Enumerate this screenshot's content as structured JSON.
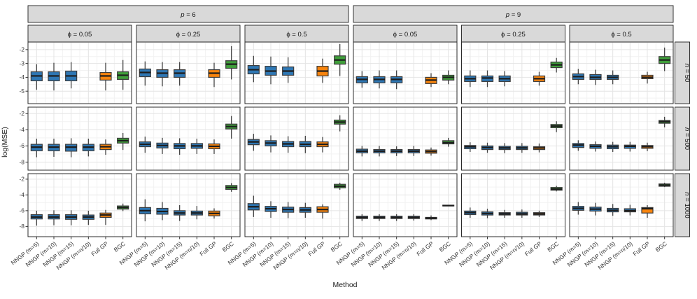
{
  "chart_data": {
    "type": "boxplot",
    "xlabel": "Method",
    "ylabel": "log(MSE)",
    "legend": "none",
    "grid": "on",
    "methods": [
      "NNGP (m=5)",
      "NNGP (m=10)",
      "NNGP (m=15)",
      "NNGP (m=n/10)",
      "Full GP",
      "BGC"
    ],
    "method_colors": [
      "#2e77b4",
      "#2e77b4",
      "#2e77b4",
      "#2e77b4",
      "#f8840d",
      "#3f9e3a"
    ],
    "colors": {
      "nngp_blue": "#2e77b4",
      "full_gp_orange": "#f8840d",
      "bgc_green": "#3f9e3a",
      "strip_fill": "#d9d9d9",
      "panel_border": "#2b2b2b",
      "grid_major": "#e4e4e4",
      "grid_minor": "#f2f2f2",
      "median": "#1d1d1d",
      "box_stroke": "#3d3d3d",
      "whisker": "#454545",
      "tick_text": "#333333"
    },
    "col_groups": [
      {
        "var": "p",
        "value": "6",
        "italic": true,
        "label": "p = 6"
      },
      {
        "var": "p",
        "value": "9",
        "italic": true,
        "label": "p = 9"
      }
    ],
    "sub_cols": [
      {
        "var": "ϕ",
        "value": "0.05",
        "italic": false,
        "label": "ϕ = 0.05"
      },
      {
        "var": "ϕ",
        "value": "0.25",
        "italic": false,
        "label": "ϕ = 0.25"
      },
      {
        "var": "ϕ",
        "value": "0.5",
        "italic": false,
        "label": "ϕ = 0.5"
      }
    ],
    "rows": [
      {
        "var": "n",
        "value": "50",
        "italic": true,
        "label": "n = 50",
        "ylim": [
          -5.9,
          -1.45
        ],
        "yticks": [
          -2,
          -3,
          -4,
          -5
        ],
        "yminor": [
          -1.5,
          -2.5,
          -3.5,
          -4.5,
          -5.5
        ]
      },
      {
        "var": "n",
        "value": "500",
        "italic": true,
        "label": "n = 500",
        "ylim": [
          -9.0,
          -1.2
        ],
        "yticks": [
          -2,
          -4,
          -6,
          -8
        ],
        "yminor": [
          -3,
          -5,
          -7
        ]
      },
      {
        "var": "n",
        "value": "1000",
        "italic": true,
        "label": "n = 1000",
        "ylim": [
          -9.3,
          -1.3
        ],
        "yticks": [
          -2,
          -4,
          -6,
          -8
        ],
        "yminor": [
          -3,
          -5,
          -7
        ]
      }
    ],
    "box_stat_order": [
      "whisker_low",
      "q1",
      "median",
      "q3",
      "whisker_high"
    ],
    "panels": [
      {
        "n": "50",
        "p": "6",
        "phi": "0.05",
        "boxes": [
          [
            -4.9,
            -4.25,
            -3.9,
            -3.6,
            -3.05
          ],
          [
            -4.95,
            -4.25,
            -3.9,
            -3.6,
            -2.95
          ],
          [
            -4.8,
            -4.25,
            -3.9,
            -3.55,
            -2.9
          ],
          null,
          [
            -4.95,
            -4.2,
            -3.9,
            -3.65,
            -2.95
          ],
          [
            -4.9,
            -4.15,
            -3.85,
            -3.6,
            -2.75
          ]
        ]
      },
      {
        "n": "50",
        "p": "6",
        "phi": "0.25",
        "boxes": [
          [
            -4.6,
            -3.95,
            -3.65,
            -3.4,
            -2.85
          ],
          [
            -4.65,
            -4.0,
            -3.7,
            -3.45,
            -2.9
          ],
          [
            -4.6,
            -4.0,
            -3.7,
            -3.45,
            -2.9
          ],
          null,
          [
            -4.7,
            -4.0,
            -3.7,
            -3.45,
            -2.95
          ],
          [
            -4.15,
            -3.35,
            -3.05,
            -2.8,
            -1.75
          ]
        ]
      },
      {
        "n": "50",
        "p": "6",
        "phi": "0.5",
        "boxes": [
          [
            -4.35,
            -3.75,
            -3.45,
            -3.15,
            -2.45
          ],
          [
            -4.5,
            -3.85,
            -3.55,
            -3.2,
            -2.5
          ],
          [
            -4.4,
            -3.85,
            -3.55,
            -3.25,
            -2.55
          ],
          null,
          [
            -4.4,
            -3.9,
            -3.55,
            -3.2,
            -2.65
          ],
          [
            -3.9,
            -3.05,
            -2.75,
            -2.45,
            -1.6
          ]
        ]
      },
      {
        "n": "50",
        "p": "9",
        "phi": "0.05",
        "boxes": [
          [
            -4.75,
            -4.4,
            -4.15,
            -3.95,
            -3.55
          ],
          [
            -4.8,
            -4.4,
            -4.15,
            -3.95,
            -3.5
          ],
          [
            -4.85,
            -4.4,
            -4.15,
            -3.95,
            -3.5
          ],
          null,
          [
            -4.7,
            -4.45,
            -4.2,
            -4.0,
            -3.7
          ],
          [
            -4.5,
            -4.2,
            -4.0,
            -3.85,
            -3.5
          ]
        ]
      },
      {
        "n": "50",
        "p": "9",
        "phi": "0.25",
        "boxes": [
          [
            -4.7,
            -4.3,
            -4.1,
            -3.9,
            -3.5
          ],
          [
            -4.7,
            -4.3,
            -4.05,
            -3.9,
            -3.5
          ],
          [
            -4.65,
            -4.3,
            -4.1,
            -3.9,
            -3.55
          ],
          null,
          [
            -4.6,
            -4.3,
            -4.1,
            -3.9,
            -3.6
          ],
          [
            -3.65,
            -3.3,
            -3.1,
            -2.9,
            -2.6
          ]
        ]
      },
      {
        "n": "50",
        "p": "9",
        "phi": "0.5",
        "boxes": [
          [
            -4.5,
            -4.15,
            -3.95,
            -3.75,
            -3.4
          ],
          [
            -4.55,
            -4.15,
            -4.0,
            -3.8,
            -3.45
          ],
          [
            -4.5,
            -4.15,
            -4.0,
            -3.85,
            -3.5
          ],
          null,
          [
            -4.45,
            -4.1,
            -4.0,
            -3.85,
            -3.6
          ],
          [
            -3.55,
            -3.0,
            -2.75,
            -2.5,
            -1.85
          ]
        ]
      },
      {
        "n": "500",
        "p": "6",
        "phi": "0.05",
        "boxes": [
          [
            -7.4,
            -6.6,
            -6.15,
            -5.8,
            -5.1
          ],
          [
            -7.35,
            -6.6,
            -6.15,
            -5.8,
            -5.1
          ],
          [
            -7.4,
            -6.65,
            -6.15,
            -5.8,
            -5.05
          ],
          [
            -7.3,
            -6.6,
            -6.15,
            -5.8,
            -5.1
          ],
          [
            -7.1,
            -6.45,
            -6.1,
            -5.8,
            -5.2
          ],
          [
            -6.5,
            -5.65,
            -5.35,
            -5.05,
            -4.4
          ]
        ]
      },
      {
        "n": "500",
        "p": "6",
        "phi": "0.25",
        "boxes": [
          [
            -6.85,
            -6.1,
            -5.8,
            -5.5,
            -4.85
          ],
          [
            -7.0,
            -6.25,
            -5.95,
            -5.65,
            -5.0
          ],
          [
            -7.1,
            -6.35,
            -6.0,
            -5.7,
            -5.05
          ],
          [
            -7.0,
            -6.3,
            -6.0,
            -5.7,
            -5.1
          ],
          [
            -7.0,
            -6.35,
            -6.05,
            -5.75,
            -5.2
          ],
          [
            -5.1,
            -3.9,
            -3.6,
            -3.3,
            -2.3
          ]
        ]
      },
      {
        "n": "500",
        "p": "6",
        "phi": "0.5",
        "boxes": [
          [
            -6.6,
            -5.85,
            -5.5,
            -5.2,
            -4.5
          ],
          [
            -6.8,
            -6.0,
            -5.65,
            -5.35,
            -4.7
          ],
          [
            -6.85,
            -6.1,
            -5.75,
            -5.45,
            -4.8
          ],
          [
            -6.9,
            -6.1,
            -5.8,
            -5.45,
            -4.75
          ],
          [
            -6.8,
            -6.1,
            -5.8,
            -5.5,
            -4.9
          ],
          [
            -4.2,
            -3.3,
            -3.05,
            -2.8,
            -2.2
          ]
        ]
      },
      {
        "n": "500",
        "p": "9",
        "phi": "0.05",
        "boxes": [
          [
            -7.3,
            -6.85,
            -6.65,
            -6.4,
            -6.0
          ],
          [
            -7.3,
            -6.85,
            -6.65,
            -6.45,
            -6.0
          ],
          [
            -7.25,
            -6.85,
            -6.65,
            -6.45,
            -6.05
          ],
          [
            -7.25,
            -6.85,
            -6.65,
            -6.45,
            -6.0
          ],
          [
            -7.2,
            -6.9,
            -6.7,
            -6.5,
            -6.2
          ],
          [
            -6.1,
            -5.75,
            -5.6,
            -5.35,
            -5.0
          ]
        ]
      },
      {
        "n": "500",
        "p": "9",
        "phi": "0.25",
        "boxes": [
          [
            -6.75,
            -6.35,
            -6.1,
            -5.95,
            -5.55
          ],
          [
            -6.85,
            -6.45,
            -6.2,
            -6.0,
            -5.6
          ],
          [
            -6.9,
            -6.45,
            -6.25,
            -6.05,
            -5.65
          ],
          [
            -6.85,
            -6.45,
            -6.25,
            -6.05,
            -5.65
          ],
          [
            -6.8,
            -6.45,
            -6.25,
            -6.1,
            -5.7
          ],
          [
            -4.3,
            -3.75,
            -3.55,
            -3.35,
            -2.95
          ]
        ]
      },
      {
        "n": "500",
        "p": "9",
        "phi": "0.5",
        "boxes": [
          [
            -6.6,
            -6.2,
            -5.9,
            -5.7,
            -5.3
          ],
          [
            -6.7,
            -6.3,
            -6.05,
            -5.85,
            -5.45
          ],
          [
            -6.75,
            -6.35,
            -6.1,
            -5.9,
            -5.5
          ],
          [
            -6.7,
            -6.3,
            -6.05,
            -5.9,
            -5.5
          ],
          [
            -6.65,
            -6.3,
            -6.1,
            -5.95,
            -5.6
          ],
          [
            -3.7,
            -3.2,
            -3.0,
            -2.85,
            -2.4
          ]
        ]
      },
      {
        "n": "1000",
        "p": "6",
        "phi": "0.05",
        "boxes": [
          [
            -7.9,
            -7.05,
            -6.8,
            -6.5,
            -6.0
          ],
          [
            -7.85,
            -7.05,
            -6.8,
            -6.5,
            -5.95
          ],
          [
            -7.85,
            -7.1,
            -6.8,
            -6.5,
            -5.95
          ],
          [
            -7.8,
            -7.1,
            -6.8,
            -6.55,
            -6.0
          ],
          [
            -7.8,
            -6.85,
            -6.55,
            -6.3,
            -5.9
          ],
          [
            -6.05,
            -5.8,
            -5.6,
            -5.4,
            -5.1
          ]
        ]
      },
      {
        "n": "1000",
        "p": "6",
        "phi": "0.25",
        "boxes": [
          [
            -7.35,
            -6.4,
            -6.0,
            -5.6,
            -4.55
          ],
          [
            -7.2,
            -6.45,
            -6.1,
            -5.7,
            -4.9
          ],
          [
            -7.3,
            -6.55,
            -6.3,
            -6.0,
            -5.3
          ],
          [
            -7.1,
            -6.55,
            -6.3,
            -6.05,
            -5.4
          ],
          [
            -7.0,
            -6.65,
            -6.35,
            -6.05,
            -5.7
          ],
          [
            -3.6,
            -3.3,
            -3.05,
            -2.8,
            -2.5
          ]
        ]
      },
      {
        "n": "1000",
        "p": "6",
        "phi": "0.5",
        "boxes": [
          [
            -6.8,
            -5.9,
            -5.5,
            -5.1,
            -4.1
          ],
          [
            -6.9,
            -6.1,
            -5.75,
            -5.45,
            -4.8
          ],
          [
            -6.95,
            -6.2,
            -5.85,
            -5.55,
            -4.9
          ],
          [
            -6.9,
            -6.2,
            -5.9,
            -5.6,
            -5.0
          ],
          [
            -7.0,
            -6.2,
            -5.85,
            -5.5,
            -5.2
          ],
          [
            -3.35,
            -3.1,
            -2.9,
            -2.65,
            -2.45
          ]
        ]
      },
      {
        "n": "1000",
        "p": "9",
        "phi": "0.05",
        "boxes": [
          [
            -7.3,
            -7.0,
            -6.85,
            -6.7,
            -6.45
          ],
          [
            -7.3,
            -7.0,
            -6.85,
            -6.7,
            -6.45
          ],
          [
            -7.3,
            -7.0,
            -6.85,
            -6.7,
            -6.45
          ],
          [
            -7.25,
            -7.0,
            -6.85,
            -6.7,
            -6.45
          ],
          [
            -7.2,
            -7.05,
            -6.95,
            -6.85,
            -6.6
          ],
          [
            -5.42,
            -5.4,
            -5.35,
            -5.3,
            -5.28
          ]
        ]
      },
      {
        "n": "1000",
        "p": "9",
        "phi": "0.25",
        "boxes": [
          [
            -6.9,
            -6.5,
            -6.25,
            -6.05,
            -5.6
          ],
          [
            -6.95,
            -6.55,
            -6.35,
            -6.15,
            -5.75
          ],
          [
            -6.9,
            -6.55,
            -6.4,
            -6.25,
            -5.9
          ],
          [
            -6.9,
            -6.55,
            -6.4,
            -6.2,
            -5.85
          ],
          [
            -6.8,
            -6.55,
            -6.4,
            -6.25,
            -6.0
          ],
          [
            -3.55,
            -3.4,
            -3.25,
            -3.05,
            -2.85
          ]
        ]
      },
      {
        "n": "1000",
        "p": "9",
        "phi": "0.5",
        "boxes": [
          [
            -6.5,
            -5.95,
            -5.7,
            -5.45,
            -4.9
          ],
          [
            -6.6,
            -6.05,
            -5.8,
            -5.55,
            -5.0
          ],
          [
            -6.65,
            -6.15,
            -5.95,
            -5.7,
            -5.15
          ],
          [
            -6.6,
            -6.15,
            -6.0,
            -5.75,
            -5.25
          ],
          [
            -6.9,
            -6.3,
            -5.75,
            -5.6,
            -5.3
          ],
          [
            -3.0,
            -2.9,
            -2.75,
            -2.6,
            -2.45
          ]
        ]
      }
    ]
  }
}
